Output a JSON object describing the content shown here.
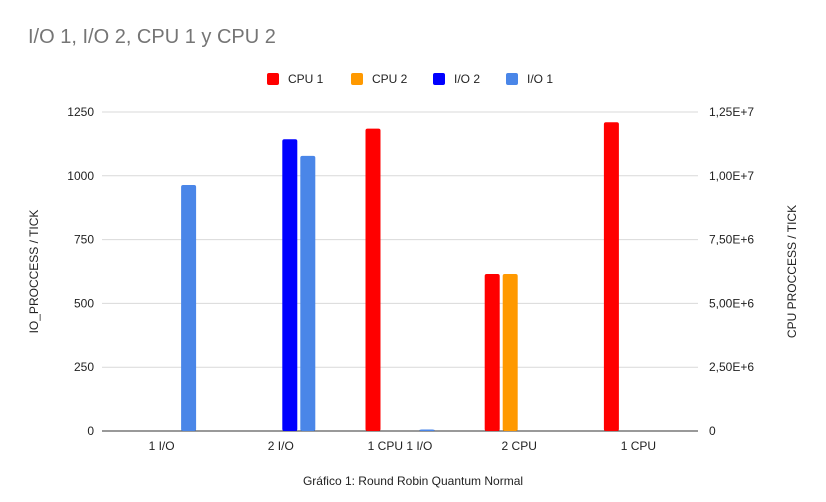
{
  "chart_data": {
    "type": "bar",
    "title": "I/O 1, I/O 2, CPU 1 y CPU 2",
    "xlabel": "Gráfico 1: Round Robin Quantum Normal",
    "ylabel": "IO_PROCCESS / TICK",
    "ylabel_right": "CPU PROCCESS / TICK",
    "categories": [
      "1 I/O",
      "2 I/O",
      "1 CPU 1 I/O",
      "2 CPU",
      "1 CPU"
    ],
    "ylim": [
      0,
      1250
    ],
    "ylim_right": [
      0,
      12500000
    ],
    "yticks": [
      {
        "value": 0,
        "label": "0"
      },
      {
        "value": 250,
        "label": "250"
      },
      {
        "value": 500,
        "label": "500"
      },
      {
        "value": 750,
        "label": "750"
      },
      {
        "value": 1000,
        "label": "1000"
      },
      {
        "value": 1250,
        "label": "1250"
      }
    ],
    "yticks_right": [
      {
        "value": 0,
        "label": "0"
      },
      {
        "value": 2500000,
        "label": "2,50E+6"
      },
      {
        "value": 5000000,
        "label": "5,00E+6"
      },
      {
        "value": 7500000,
        "label": "7,50E+6"
      },
      {
        "value": 10000000,
        "label": "1,00E+7"
      },
      {
        "value": 12500000,
        "label": "1,25E+7"
      }
    ],
    "grid": true,
    "legend_position": "top",
    "series": [
      {
        "name": "CPU 1",
        "color": "#ff0000",
        "axis": "right",
        "values": [
          0,
          0,
          11850000,
          6150000,
          12100000
        ]
      },
      {
        "name": "CPU 2",
        "color": "#ff9900",
        "axis": "right",
        "values": [
          0,
          0,
          0,
          6150000,
          0
        ]
      },
      {
        "name": "I/O 2",
        "color": "#0000ff",
        "axis": "left",
        "values": [
          0,
          1143,
          0,
          0,
          0
        ]
      },
      {
        "name": "I/O 1",
        "color": "#4a86e8",
        "axis": "left",
        "values": [
          964,
          1078,
          5,
          0,
          0
        ]
      }
    ]
  }
}
